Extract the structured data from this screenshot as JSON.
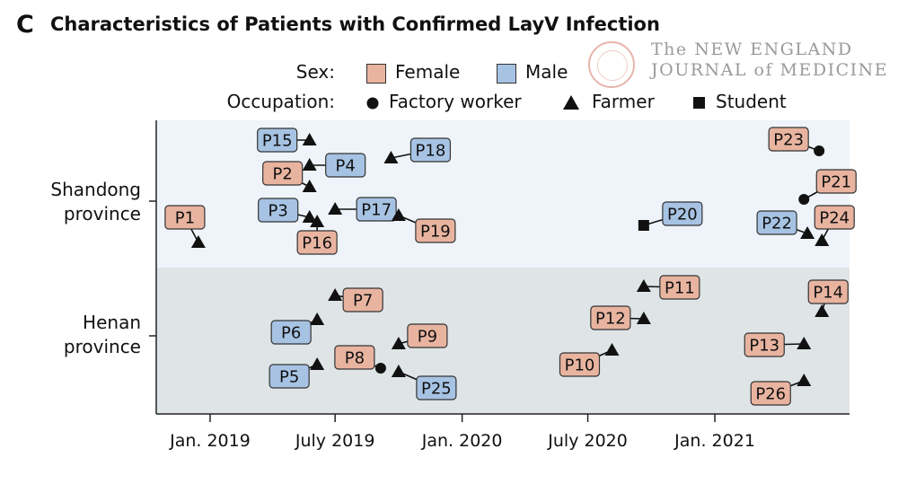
{
  "header": {
    "panel_letter": "C",
    "title": "Characteristics of Patients with Confirmed LayV Infection",
    "watermark_line1": "The NEW ENGLAND",
    "watermark_line2": "JOURNAL of MEDICINE"
  },
  "legend": {
    "sex_label": "Sex:",
    "female_label": "Female",
    "male_label": "Male",
    "occupation_label": "Occupation:",
    "factory_label": "Factory worker",
    "farmer_label": "Farmer",
    "student_label": "Student",
    "colors": {
      "female": "#e8b4a0",
      "male": "#a7c3e3"
    }
  },
  "chart_data": {
    "type": "scatter",
    "title": "Characteristics of Patients with Confirmed LayV Infection",
    "x_axis": {
      "type": "date",
      "range": [
        "2018-10-15",
        "2021-07-15"
      ],
      "ticks": [
        "2019-01-01",
        "2019-07-01",
        "2020-01-01",
        "2020-07-01",
        "2021-01-01"
      ],
      "tick_labels": [
        "Jan. 2019",
        "July 2019",
        "Jan. 2020",
        "July 2020",
        "Jan. 2021"
      ]
    },
    "y_groups": [
      {
        "name": "Shandong province",
        "label_lines": [
          "Shandong",
          "province"
        ],
        "background": "#eef4f9"
      },
      {
        "name": "Henan province",
        "label_lines": [
          "Henan",
          "province"
        ],
        "background": "#dfe4e6"
      }
    ],
    "patients": [
      {
        "id": "P1",
        "date": "2018-12-15",
        "province": "Shandong",
        "sex": "Female",
        "occupation": "Farmer"
      },
      {
        "id": "P2",
        "date": "2019-05-25",
        "province": "Shandong",
        "sex": "Female",
        "occupation": "Farmer"
      },
      {
        "id": "P3",
        "date": "2019-05-25",
        "province": "Shandong",
        "sex": "Male",
        "occupation": "Farmer"
      },
      {
        "id": "P4",
        "date": "2019-05-25",
        "province": "Shandong",
        "sex": "Male",
        "occupation": "Farmer"
      },
      {
        "id": "P15",
        "date": "2019-05-25",
        "province": "Shandong",
        "sex": "Male",
        "occupation": "Farmer"
      },
      {
        "id": "P16",
        "date": "2019-06-05",
        "province": "Shandong",
        "sex": "Female",
        "occupation": "Farmer"
      },
      {
        "id": "P17",
        "date": "2019-07-01",
        "province": "Shandong",
        "sex": "Male",
        "occupation": "Farmer"
      },
      {
        "id": "P18",
        "date": "2019-09-20",
        "province": "Shandong",
        "sex": "Male",
        "occupation": "Farmer"
      },
      {
        "id": "P19",
        "date": "2019-10-01",
        "province": "Shandong",
        "sex": "Female",
        "occupation": "Farmer"
      },
      {
        "id": "P20",
        "date": "2020-09-20",
        "province": "Shandong",
        "sex": "Male",
        "occupation": "Student"
      },
      {
        "id": "P21",
        "date": "2021-05-10",
        "province": "Shandong",
        "sex": "Female",
        "occupation": "Factory worker"
      },
      {
        "id": "P22",
        "date": "2021-05-15",
        "province": "Shandong",
        "sex": "Male",
        "occupation": "Farmer"
      },
      {
        "id": "P23",
        "date": "2021-06-01",
        "province": "Shandong",
        "sex": "Female",
        "occupation": "Factory worker"
      },
      {
        "id": "P24",
        "date": "2021-06-05",
        "province": "Shandong",
        "sex": "Female",
        "occupation": "Farmer"
      },
      {
        "id": "P5",
        "date": "2019-06-05",
        "province": "Henan",
        "sex": "Male",
        "occupation": "Farmer"
      },
      {
        "id": "P6",
        "date": "2019-06-05",
        "province": "Henan",
        "sex": "Male",
        "occupation": "Farmer"
      },
      {
        "id": "P7",
        "date": "2019-07-01",
        "province": "Henan",
        "sex": "Female",
        "occupation": "Farmer"
      },
      {
        "id": "P8",
        "date": "2019-09-05",
        "province": "Henan",
        "sex": "Female",
        "occupation": "Factory worker"
      },
      {
        "id": "P9",
        "date": "2019-10-01",
        "province": "Henan",
        "sex": "Female",
        "occupation": "Farmer"
      },
      {
        "id": "P25",
        "date": "2019-10-01",
        "province": "Henan",
        "sex": "Male",
        "occupation": "Farmer"
      },
      {
        "id": "P10",
        "date": "2020-08-05",
        "province": "Henan",
        "sex": "Female",
        "occupation": "Farmer"
      },
      {
        "id": "P11",
        "date": "2020-09-20",
        "province": "Henan",
        "sex": "Female",
        "occupation": "Farmer"
      },
      {
        "id": "P12",
        "date": "2020-09-20",
        "province": "Henan",
        "sex": "Female",
        "occupation": "Farmer"
      },
      {
        "id": "P13",
        "date": "2021-05-10",
        "province": "Henan",
        "sex": "Female",
        "occupation": "Farmer"
      },
      {
        "id": "P26",
        "date": "2021-05-10",
        "province": "Henan",
        "sex": "Female",
        "occupation": "Farmer"
      },
      {
        "id": "P14",
        "date": "2021-06-05",
        "province": "Henan",
        "sex": "Female",
        "occupation": "Farmer"
      }
    ]
  }
}
